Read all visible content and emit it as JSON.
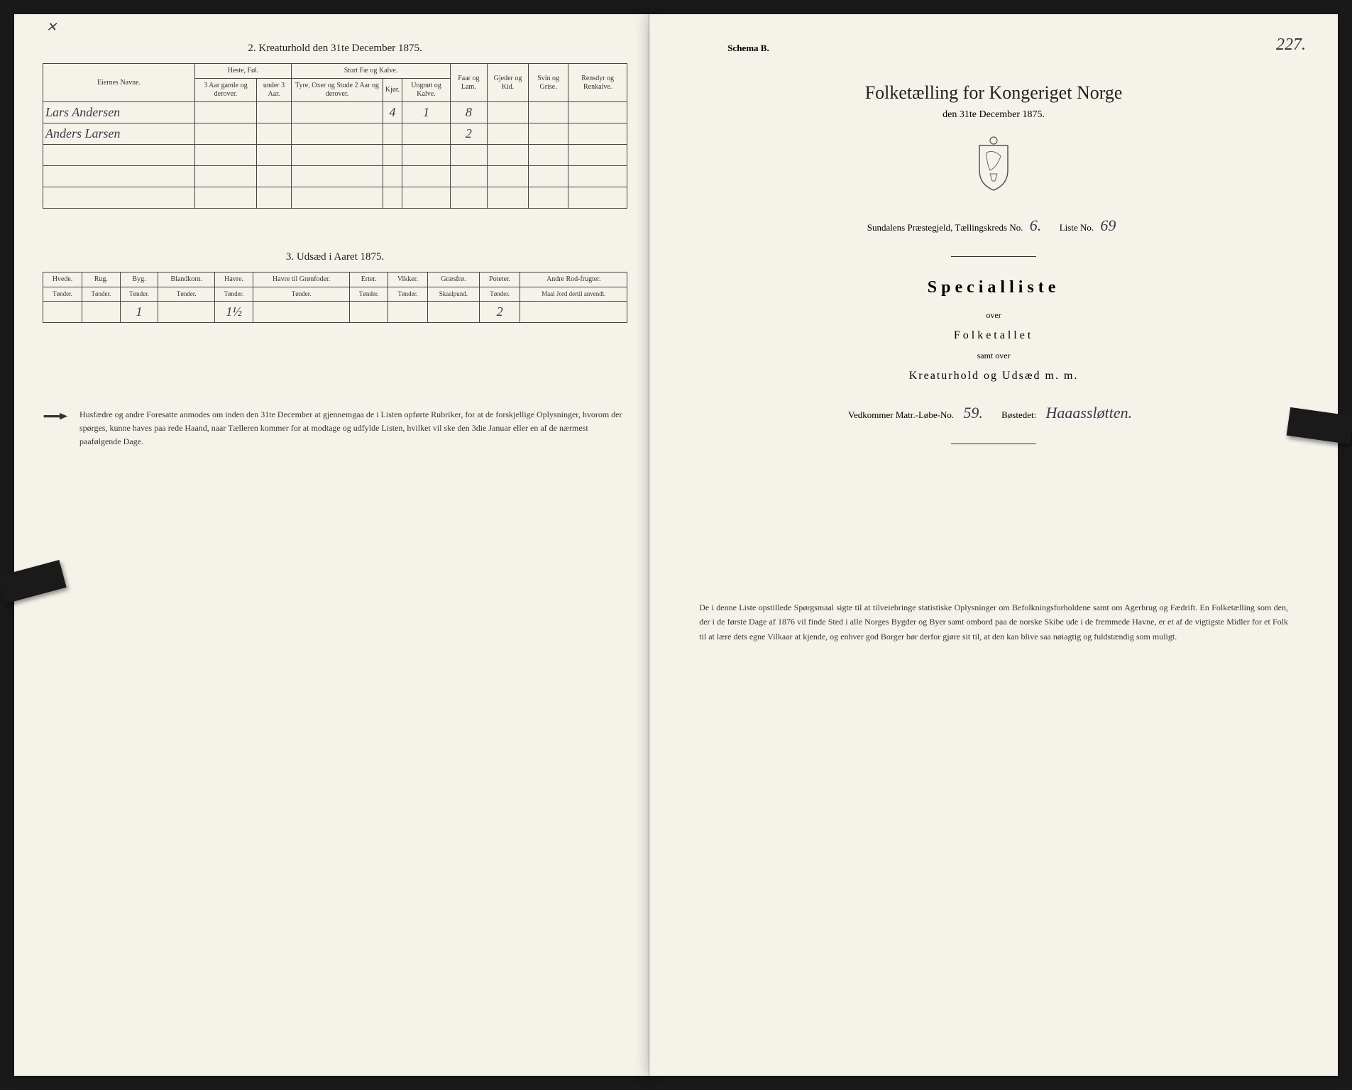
{
  "left": {
    "section2_title": "2.  Kreaturhold den 31te December 1875.",
    "table2": {
      "headers": {
        "name": "Eiernes Navne.",
        "horses": "Heste, Føl.",
        "horses_sub1": "3 Aar gamle og derover.",
        "horses_sub2": "under 3 Aar.",
        "cattle": "Stort Fæ og Kalve.",
        "cattle_sub1": "Tyre, Oxer og Stude 2 Aar og derover.",
        "cattle_sub2": "Kjør.",
        "cattle_sub3": "Ungnøt og Kalve.",
        "sheep": "Faar og Lam.",
        "goats": "Gjeder og Kid.",
        "pigs": "Svin og Grise.",
        "reindeer": "Rensdyr og Renkalve."
      },
      "rows": [
        {
          "name": "Lars Andersen",
          "v": [
            "",
            "",
            "",
            "4",
            "1",
            "8",
            "",
            "",
            ""
          ]
        },
        {
          "name": "Anders Larsen",
          "v": [
            "",
            "",
            "",
            "",
            "",
            "2",
            "",
            "",
            ""
          ]
        },
        {
          "name": "",
          "v": [
            "",
            "",
            "",
            "",
            "",
            "",
            "",
            "",
            ""
          ]
        },
        {
          "name": "",
          "v": [
            "",
            "",
            "",
            "",
            "",
            "",
            "",
            "",
            ""
          ]
        },
        {
          "name": "",
          "v": [
            "",
            "",
            "",
            "",
            "",
            "",
            "",
            "",
            ""
          ]
        }
      ]
    },
    "section3_title": "3.  Udsæd i Aaret 1875.",
    "table3": {
      "headers": [
        "Hvede.",
        "Rug.",
        "Byg.",
        "Blandkorn.",
        "Havre.",
        "Havre til Grønfoder.",
        "Erter.",
        "Vikker.",
        "Græsfrø.",
        "Poteter.",
        "Andre Rod-frugter."
      ],
      "subheaders": [
        "Tønder.",
        "Tønder.",
        "Tønder.",
        "Tønder.",
        "Tønder.",
        "Tønder.",
        "Tønder.",
        "Tønder.",
        "Skaalpund.",
        "Tønder.",
        "Maal Jord dertil anvendt."
      ],
      "row": [
        "",
        "",
        "1",
        "",
        "1½",
        "",
        "",
        "",
        "",
        "2",
        ""
      ]
    },
    "footnote": "Husfædre og andre Foresatte anmodes om inden den 31te December at gjennemgaa de i Listen opførte Rubriker, for at de forskjellige Oplysninger, hvorom der spørges, kunne haves paa rede Haand, naar Tælleren kommer for at modtage og udfylde Listen, hvilket vil ske den 3die Januar eller en af de nærmest paafølgende Dage."
  },
  "right": {
    "page_number": "227.",
    "schema": "Schema B.",
    "title": "Folketælling for Kongeriget Norge",
    "subtitle": "den 31te December 1875.",
    "parish_prefix": "Sundalens Præstegjeld,  Tællingskreds No.",
    "kreds_no": "6.",
    "liste_label": "Liste No.",
    "liste_no": "69",
    "special": "Specialliste",
    "over": "over",
    "folketallet": "Folketallet",
    "samt": "samt over",
    "kreatur": "Kreaturhold og Udsæd m. m.",
    "vedkommer_label": "Vedkommer Matr.-Løbe-No.",
    "matr_no": "59.",
    "bestedet_label": "Bøstedet:",
    "bestedet": "Haaassløtten.",
    "bottom": "De i denne Liste opstillede Spørgsmaal sigte til at tilveiebringe statistiske Oplysninger om Befolkningsforholdene samt om Agerbrug og Fædrift. En Folketælling som den, der i de første Dage af 1876 vil finde Sted i alle Norges Bygder og Byer samt ombord paa de norske Skibe ude i de fremmede Havne, er et af de vigtigste Midler for et Folk til at lære dets egne Vilkaar at kjende, og enhver god Borger bør derfor gjøre sit til, at den kan blive saa nøiagtig og fuldstændig som muligt."
  }
}
